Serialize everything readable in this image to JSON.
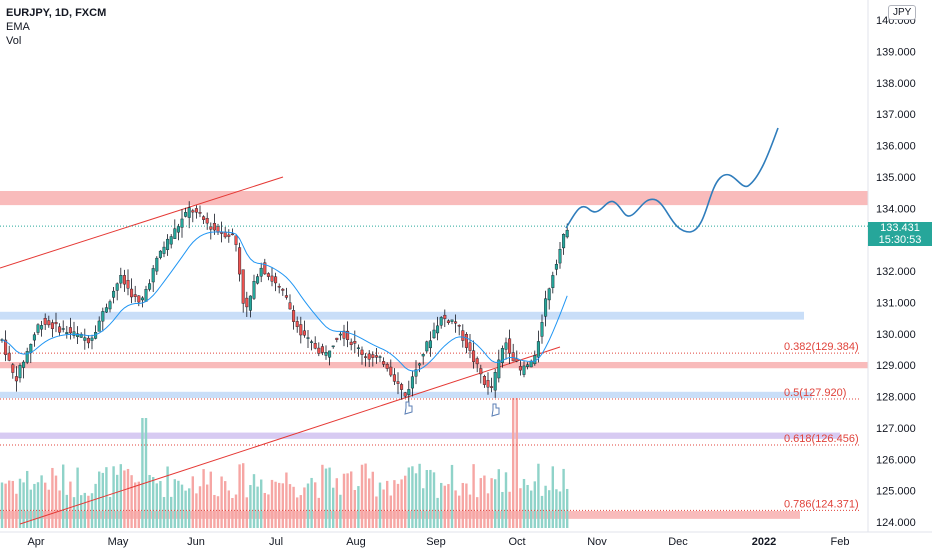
{
  "legend": {
    "symbol": "EURJPY, 1D, FXCM",
    "ema": "EMA",
    "vol": "Vol"
  },
  "currency_badge": "JPY",
  "price_axis": {
    "ticks": [
      "140.000",
      "139.000",
      "138.000",
      "137.000",
      "136.000",
      "135.000",
      "134.000",
      "133.000",
      "132.000",
      "131.000",
      "130.000",
      "129.000",
      "128.000",
      "127.000",
      "126.000",
      "125.000",
      "124.000"
    ],
    "tick_values": [
      140,
      139,
      138,
      137,
      136,
      135,
      134,
      133,
      132,
      131,
      130,
      129,
      128,
      127,
      126,
      125,
      124
    ],
    "range": [
      124,
      140.4
    ]
  },
  "time_axis": {
    "labels": [
      {
        "text": "Apr",
        "bold": false
      },
      {
        "text": "May",
        "bold": false
      },
      {
        "text": "Jun",
        "bold": false
      },
      {
        "text": "Jul",
        "bold": false
      },
      {
        "text": "Aug",
        "bold": false
      },
      {
        "text": "Sep",
        "bold": false
      },
      {
        "text": "Oct",
        "bold": false
      },
      {
        "text": "Nov",
        "bold": false
      },
      {
        "text": "Dec",
        "bold": false
      },
      {
        "text": "2022",
        "bold": true
      },
      {
        "text": "Feb",
        "bold": false
      }
    ]
  },
  "current_price": {
    "price": "133.431",
    "countdown": "15:30:53",
    "value": 133.431,
    "color": "#26a69a"
  },
  "fib_levels": [
    {
      "label": "0.382(129.384)",
      "value": 129.384
    },
    {
      "label": "0.5(127.920)",
      "value": 127.92
    },
    {
      "label": "0.618(126.456)",
      "value": 126.456
    },
    {
      "label": "0.786(124.371)",
      "value": 124.371
    }
  ],
  "zones": [
    {
      "from": 134.1,
      "to": 134.55,
      "color": "#f7a4a4"
    },
    {
      "from": 130.45,
      "to": 130.7,
      "color": "#b7d3f5"
    },
    {
      "from": 128.9,
      "to": 129.1,
      "color": "#f7a4a4"
    },
    {
      "from": 127.95,
      "to": 128.15,
      "color": "#b7d3f5"
    },
    {
      "from": 126.65,
      "to": 126.85,
      "color": "#c9b8ee"
    },
    {
      "from": 124.1,
      "to": 124.35,
      "color": "#f7a4a4"
    }
  ],
  "colors": {
    "up": "#26a69a",
    "down": "#ef5350",
    "ema": "#2196f3",
    "trend": "#e53935",
    "projection": "#2f7dbc"
  }
}
